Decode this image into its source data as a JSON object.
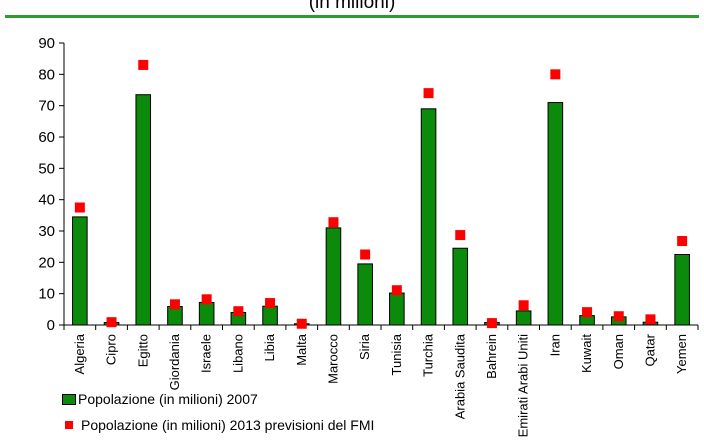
{
  "chart_data": {
    "type": "bar",
    "title": "(in milioni)",
    "categories": [
      "Algeria",
      "Cipro",
      "Egitto",
      "Giordania",
      "Israele",
      "Libano",
      "Libia",
      "Malta",
      "Marocco",
      "Siria",
      "Tunisia",
      "Turchia",
      "Arabia Saudita",
      "Bahrein",
      "Emirati Arabi Uniti",
      "Iran",
      "Kuwait",
      "Oman",
      "Qatar",
      "Yemen"
    ],
    "series": [
      {
        "name": "Popolazione (in milioni) 2007",
        "kind": "bar",
        "color": "#0b8a0b",
        "values": [
          34.5,
          0.8,
          73.5,
          5.9,
          7.2,
          4.0,
          6.0,
          0.4,
          31.0,
          19.5,
          10.2,
          69.0,
          24.5,
          0.8,
          4.5,
          71.0,
          3.0,
          2.6,
          0.9,
          22.5
        ]
      },
      {
        "name": "Popolazione (in milioni) 2013 previsioni del FMI",
        "kind": "marker",
        "color": "#ff0000",
        "values": [
          37.5,
          0.9,
          83.0,
          6.6,
          8.2,
          4.4,
          7.0,
          0.4,
          32.8,
          22.5,
          11.1,
          74.0,
          28.7,
          0.6,
          6.3,
          80.0,
          4.1,
          2.8,
          1.8,
          26.8
        ]
      }
    ],
    "ylim": [
      0,
      90
    ],
    "yticks": [
      0,
      10,
      20,
      30,
      40,
      50,
      60,
      70,
      80,
      90
    ],
    "grid": false,
    "legend_position": "bottom-left"
  }
}
